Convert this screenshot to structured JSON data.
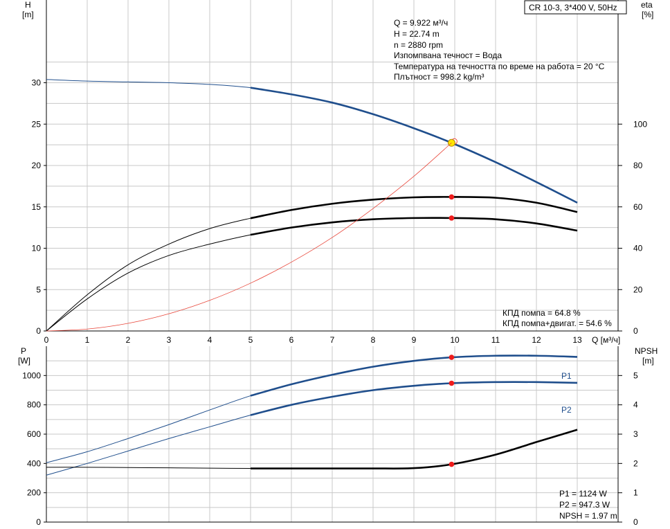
{
  "chart_data": [
    {
      "type": "line",
      "id": "top",
      "title": "CR 10-3, 3*400 V, 50Hz",
      "xlabel": "Q [м³/ч]",
      "ylabel_left": [
        "H",
        "[m]"
      ],
      "ylabel_right": [
        "eta",
        "[%]"
      ],
      "xlim": [
        0,
        14
      ],
      "ylim_left": [
        0,
        40
      ],
      "ylim_right": [
        0,
        160
      ],
      "x_ticks": [
        0,
        1,
        2,
        3,
        4,
        5,
        6,
        7,
        8,
        9,
        10,
        11,
        12,
        13
      ],
      "y_left_ticks": [
        0,
        5,
        10,
        15,
        20,
        25,
        30
      ],
      "y_right_ticks": [
        0,
        20,
        40,
        60,
        80,
        100
      ],
      "grid": true,
      "info_lines": [
        "Q = 9.922 м³/ч",
        "H = 22.74 m",
        "n = 2880 rpm",
        "Изпомпвана течност = Вода",
        "Температура на течността по време на работа = 20 °C",
        "Плътност = 998.2 kg/m³"
      ],
      "eff_lines": [
        "КПД помпа = 64.8 %",
        "КПД помпа+двигат. = 54.6 %"
      ],
      "series": [
        {
          "key": "H",
          "axis": "left",
          "color": "#1f4e8c",
          "x": [
            0,
            1,
            2,
            3,
            4,
            5,
            6,
            7,
            8,
            9,
            9.922,
            11,
            12,
            13
          ],
          "y": [
            30.4,
            30.2,
            30.1,
            30.0,
            29.8,
            29.4,
            28.6,
            27.6,
            26.2,
            24.5,
            22.74,
            20.4,
            18.0,
            15.5
          ],
          "bold_from": 5,
          "op": {
            "x": 9.922,
            "y": 22.74
          }
        },
        {
          "key": "eta_pump",
          "axis": "right",
          "color": "#000000",
          "x": [
            0,
            1,
            2,
            3,
            4,
            5,
            6,
            7,
            8,
            9,
            9.922,
            11,
            12,
            13
          ],
          "y": [
            0,
            17.5,
            32,
            42,
            49.5,
            54.5,
            58.5,
            61.5,
            63.5,
            64.6,
            64.8,
            64.4,
            62.0,
            57.5
          ],
          "bold_from": 5,
          "op": {
            "x": 9.922,
            "y": 64.8
          }
        },
        {
          "key": "eta_total",
          "axis": "right",
          "color": "#000000",
          "x": [
            0,
            1,
            2,
            3,
            4,
            5,
            6,
            7,
            8,
            9,
            9.922,
            11,
            12,
            13
          ],
          "y": [
            0,
            15.5,
            28,
            36.5,
            42,
            46.5,
            50,
            52.5,
            54,
            54.6,
            54.6,
            54.0,
            52.0,
            48.5
          ],
          "bold_from": 5,
          "op": {
            "x": 9.922,
            "y": 54.6
          }
        },
        {
          "key": "H_system",
          "axis": "left",
          "color": "#e8463a",
          "x": [
            0,
            1,
            2,
            3,
            4,
            5,
            6,
            7,
            8,
            9,
            9.922
          ],
          "y": [
            0,
            0.23,
            0.92,
            2.08,
            3.7,
            5.78,
            8.32,
            11.3,
            14.8,
            18.7,
            22.74
          ],
          "bold_from": null,
          "op": null
        }
      ]
    },
    {
      "type": "line",
      "id": "bottom",
      "xlim": [
        0,
        14
      ],
      "ylabel_left": [
        "P",
        "[W]"
      ],
      "ylabel_right": [
        "NPSH",
        "[m]"
      ],
      "ylim_left": [
        0,
        1200
      ],
      "ylim_right": [
        0,
        6
      ],
      "y_left_ticks": [
        0,
        200,
        400,
        600,
        800,
        1000
      ],
      "y_right_ticks": [
        0,
        1,
        2,
        3,
        4,
        5
      ],
      "grid": true,
      "values_text": [
        "P1 = 1124 W",
        "P2 = 947.3 W",
        "NPSH = 1.97 m"
      ],
      "series": [
        {
          "key": "P1",
          "name": "P1",
          "axis": "left",
          "color": "#1f4e8c",
          "x": [
            0,
            1,
            2,
            3,
            4,
            5,
            6,
            7,
            8,
            9,
            9.922,
            11,
            12,
            13
          ],
          "y": [
            405,
            480,
            570,
            665,
            765,
            862,
            940,
            1005,
            1060,
            1100,
            1124,
            1135,
            1135,
            1127
          ],
          "bold_from": 5,
          "op": {
            "x": 9.922,
            "y": 1124
          }
        },
        {
          "key": "P2",
          "name": "P2",
          "axis": "left",
          "color": "#1f4e8c",
          "x": [
            0,
            1,
            2,
            3,
            4,
            5,
            6,
            7,
            8,
            9,
            9.922,
            11,
            12,
            13
          ],
          "y": [
            320,
            400,
            485,
            570,
            650,
            730,
            800,
            855,
            900,
            930,
            947.3,
            955,
            955,
            950
          ],
          "bold_from": 5,
          "op": {
            "x": 9.922,
            "y": 947.3
          }
        },
        {
          "key": "NPSH",
          "axis": "right",
          "color": "#000000",
          "x": [
            0,
            1,
            2,
            3,
            4,
            5,
            6,
            7,
            8,
            9,
            9.922,
            11,
            12,
            13
          ],
          "y": [
            1.87,
            1.87,
            1.86,
            1.85,
            1.84,
            1.83,
            1.83,
            1.83,
            1.83,
            1.84,
            1.97,
            2.3,
            2.73,
            3.15
          ],
          "bold_from": 5,
          "op": {
            "x": 9.922,
            "y": 1.97
          }
        }
      ]
    }
  ]
}
